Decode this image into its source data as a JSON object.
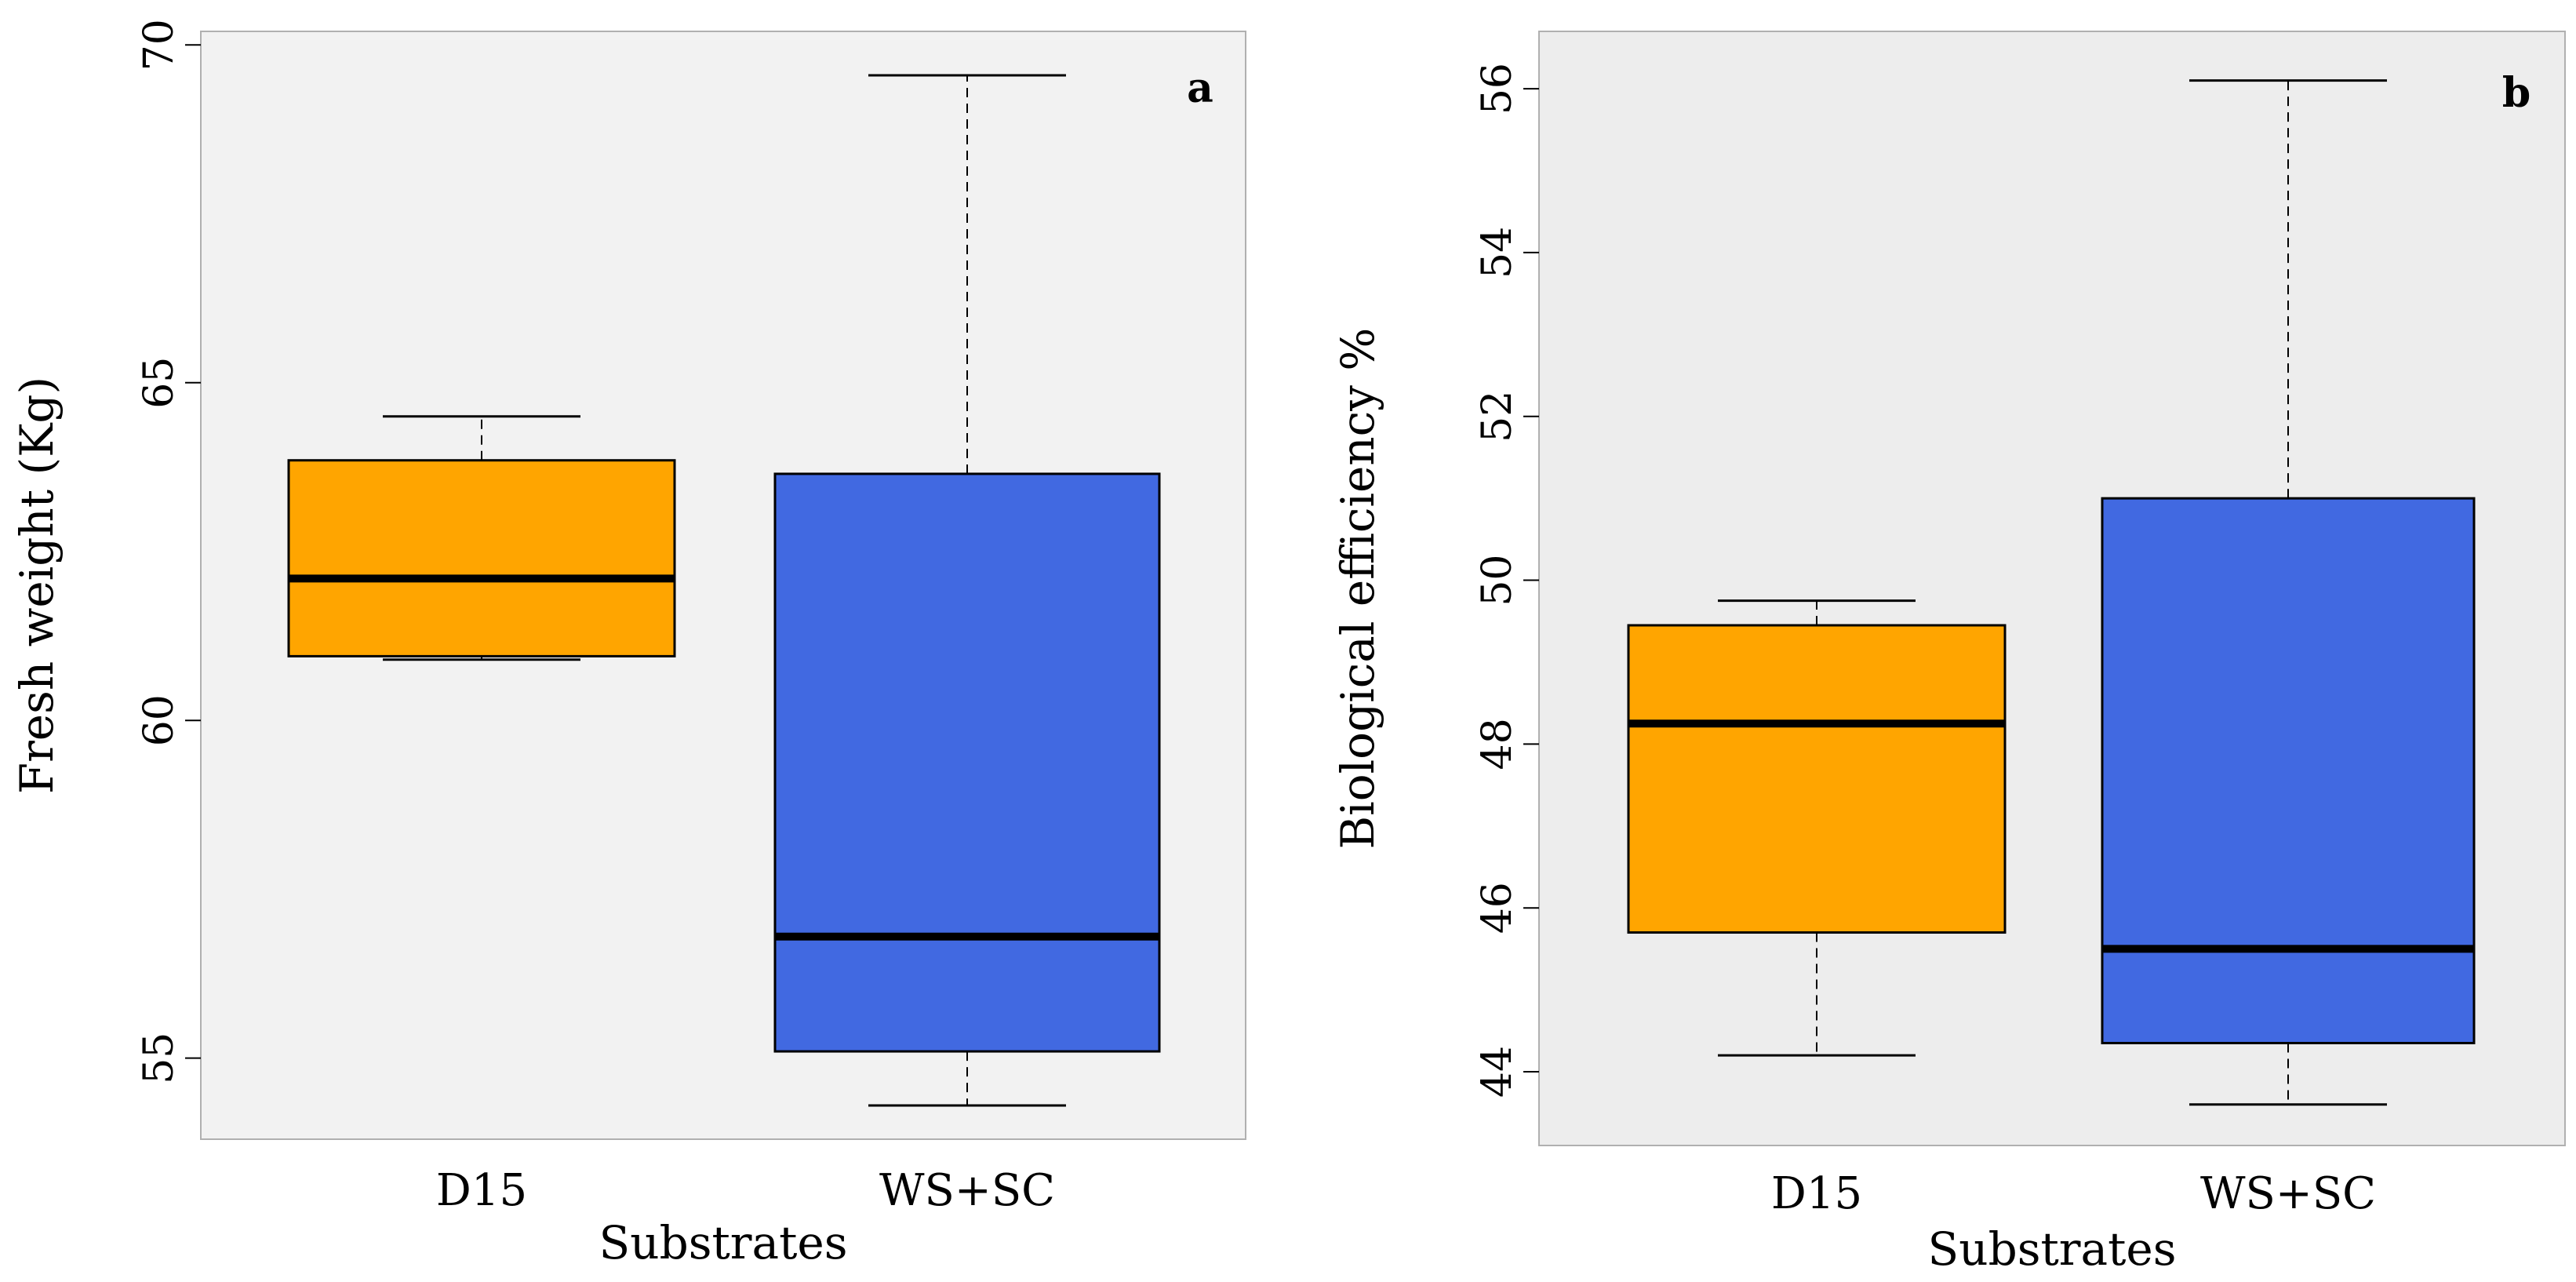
{
  "colors": {
    "d15": "#FFA500",
    "ws_sc": "#4169E1",
    "panel_a_bg": "#F2F2F2",
    "panel_b_bg": "#EDEDED"
  },
  "chart_data": [
    {
      "type": "boxplot",
      "panel_label": "a",
      "xlabel": "Substrates",
      "ylabel": "Fresh weight (Kg)",
      "ylim": [
        53.8,
        70.2
      ],
      "yticks": [
        55,
        60,
        65,
        70
      ],
      "categories": [
        "D15",
        "WS+SC"
      ],
      "boxes": [
        {
          "name": "D15",
          "whisker_low": 60.9,
          "q1": 60.95,
          "median": 62.1,
          "q3": 63.85,
          "whisker_high": 64.5
        },
        {
          "name": "WS+SC",
          "whisker_low": 54.3,
          "q1": 55.1,
          "median": 56.8,
          "q3": 63.65,
          "whisker_high": 69.55
        }
      ]
    },
    {
      "type": "boxplot",
      "panel_label": "b",
      "xlabel": "Substrates",
      "ylabel": "Biological efficiency %",
      "ylim": [
        43.1,
        56.7
      ],
      "yticks": [
        44,
        46,
        48,
        50,
        52,
        54,
        56
      ],
      "categories": [
        "D15",
        "WS+SC"
      ],
      "boxes": [
        {
          "name": "D15",
          "whisker_low": 44.2,
          "q1": 45.7,
          "median": 48.25,
          "q3": 49.45,
          "whisker_high": 49.75
        },
        {
          "name": "WS+SC",
          "whisker_low": 43.6,
          "q1": 44.35,
          "median": 45.5,
          "q3": 51.0,
          "whisker_high": 56.1
        }
      ]
    }
  ]
}
